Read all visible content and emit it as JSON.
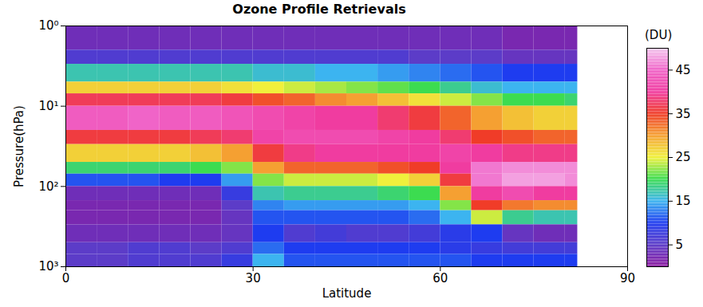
{
  "chart_data": {
    "type": "heatmap",
    "title": "Ozone Profile Retrievals",
    "x_label": "Latitude",
    "y_label": "Pressure(hPa)",
    "xlim": [
      0,
      90
    ],
    "xticks": [
      0,
      30,
      60,
      90
    ],
    "ylim": [
      1000,
      1
    ],
    "yticks": [
      {
        "value": 1,
        "label": "10⁰"
      },
      {
        "value": 10,
        "label": "10¹"
      },
      {
        "value": 100,
        "label": "10²"
      },
      {
        "value": 1000,
        "label": "10³"
      }
    ],
    "log": "y",
    "x_edges": [
      0,
      5,
      10,
      15,
      20,
      25,
      30,
      35,
      40,
      45,
      50,
      55,
      60,
      65,
      70,
      75,
      80,
      82
    ],
    "y_edges": [
      1,
      2,
      3,
      5,
      7,
      10,
      20,
      30,
      50,
      70,
      100,
      150,
      200,
      300,
      500,
      700,
      1000
    ],
    "cells": [
      [
        3,
        3,
        3,
        3,
        3,
        3,
        3,
        3,
        3,
        3,
        3,
        3,
        3,
        3,
        2,
        2,
        2
      ],
      [
        6,
        6,
        6,
        6,
        6,
        6,
        6,
        6,
        6,
        6,
        6,
        5,
        5,
        5,
        4,
        4,
        4
      ],
      [
        17,
        17,
        17,
        17,
        17,
        17,
        16,
        16,
        15,
        15,
        14,
        13,
        12,
        11,
        10,
        10,
        10
      ],
      [
        27,
        27,
        27,
        27,
        27,
        26,
        25,
        24,
        23,
        22,
        21,
        20,
        18,
        16,
        15,
        15,
        15
      ],
      [
        37,
        37,
        37,
        37,
        37,
        36,
        34,
        33,
        31,
        30,
        28,
        26,
        24,
        22,
        20,
        20,
        19
      ],
      [
        44,
        44,
        45,
        44,
        44,
        43,
        42,
        41,
        40,
        40,
        38,
        36,
        33,
        30,
        28,
        27,
        27
      ],
      [
        36,
        36,
        36,
        36,
        37,
        38,
        41,
        42,
        42,
        42,
        41,
        40,
        38,
        35,
        34,
        33,
        33
      ],
      [
        27,
        27,
        27,
        27,
        28,
        30,
        36,
        39,
        40,
        40,
        40,
        40,
        41,
        40,
        39,
        39,
        39
      ],
      [
        19,
        19,
        19,
        19,
        20,
        22,
        30,
        33,
        33,
        33,
        34,
        35,
        40,
        46,
        47,
        47,
        47
      ],
      [
        11,
        11,
        11,
        10,
        10,
        14,
        22,
        24,
        24,
        24,
        25,
        27,
        36,
        46,
        48,
        48,
        47
      ],
      [
        3,
        3,
        3,
        3,
        3,
        8,
        17,
        18,
        18,
        18,
        19,
        20,
        30,
        40,
        42,
        40,
        40
      ],
      [
        2,
        2,
        2,
        2,
        2,
        5,
        13,
        14,
        14,
        14,
        14,
        15,
        22,
        35,
        32,
        31,
        31
      ],
      [
        2,
        2,
        2,
        2,
        2,
        4,
        11,
        11,
        11,
        11,
        11,
        12,
        15,
        24,
        18,
        17,
        17
      ],
      [
        3,
        3,
        3,
        3,
        3,
        4,
        10,
        6,
        7,
        6,
        6,
        7,
        9,
        10,
        4,
        3,
        3
      ],
      [
        5,
        5,
        6,
        6,
        5,
        6,
        12,
        10,
        10,
        10,
        10,
        10,
        9,
        8,
        7,
        7,
        7
      ],
      [
        5,
        5,
        6,
        6,
        6,
        8,
        15,
        11,
        11,
        11,
        11,
        11,
        11,
        10,
        10,
        10,
        10
      ]
    ],
    "colorbar": {
      "label": "(DU)",
      "range": [
        0,
        50
      ],
      "ticks": [
        5,
        15,
        25,
        35,
        45
      ]
    }
  }
}
